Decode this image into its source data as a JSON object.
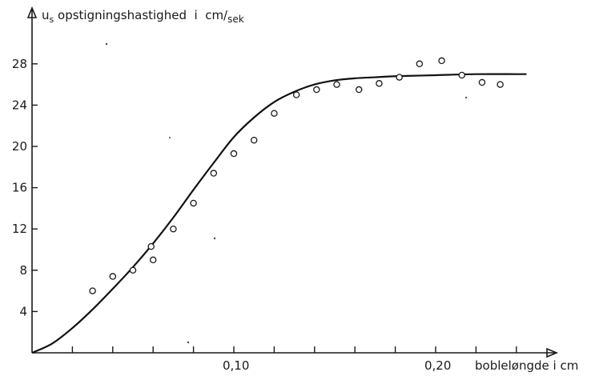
{
  "chart_data": {
    "type": "scatter",
    "ylabel": "u",
    "ylabel_sub": "s",
    "ylabel_rest": " opstigningshastighed  i  cm/",
    "ylabel_unit_sub": "sek",
    "xlabel": "bobleløngde i cm",
    "xlim": [
      0,
      0.25
    ],
    "ylim": [
      0,
      30
    ],
    "x_ticks": [
      0.02,
      0.04,
      0.06,
      0.08,
      0.1,
      0.12,
      0.14,
      0.16,
      0.18,
      0.2,
      0.22,
      0.24
    ],
    "x_tick_labels": [
      {
        "value": 0.1,
        "label": "0,10"
      },
      {
        "value": 0.2,
        "label": "0,20"
      }
    ],
    "y_ticks": [
      4,
      8,
      12,
      16,
      20,
      24,
      28
    ],
    "y_tick_labels": [
      "4",
      "8",
      "12",
      "16",
      "20",
      "24",
      "28"
    ],
    "grid": false,
    "legend": "none",
    "points": [
      {
        "x": 0.03,
        "y": 6.0
      },
      {
        "x": 0.04,
        "y": 7.4
      },
      {
        "x": 0.05,
        "y": 8.0
      },
      {
        "x": 0.059,
        "y": 10.3
      },
      {
        "x": 0.06,
        "y": 9.0
      },
      {
        "x": 0.07,
        "y": 12.0
      },
      {
        "x": 0.08,
        "y": 14.5
      },
      {
        "x": 0.09,
        "y": 17.4
      },
      {
        "x": 0.1,
        "y": 19.3
      },
      {
        "x": 0.11,
        "y": 20.6
      },
      {
        "x": 0.12,
        "y": 23.2
      },
      {
        "x": 0.131,
        "y": 25.0
      },
      {
        "x": 0.141,
        "y": 25.5
      },
      {
        "x": 0.151,
        "y": 26.0
      },
      {
        "x": 0.162,
        "y": 25.5
      },
      {
        "x": 0.172,
        "y": 26.1
      },
      {
        "x": 0.182,
        "y": 26.7
      },
      {
        "x": 0.192,
        "y": 28.0
      },
      {
        "x": 0.203,
        "y": 28.3
      },
      {
        "x": 0.213,
        "y": 26.9
      },
      {
        "x": 0.223,
        "y": 26.2
      },
      {
        "x": 0.232,
        "y": 26.0
      }
    ],
    "curve": [
      {
        "x": 0.0,
        "y": 0.0
      },
      {
        "x": 0.01,
        "y": 0.9
      },
      {
        "x": 0.02,
        "y": 2.4
      },
      {
        "x": 0.03,
        "y": 4.2
      },
      {
        "x": 0.04,
        "y": 6.2
      },
      {
        "x": 0.05,
        "y": 8.3
      },
      {
        "x": 0.06,
        "y": 10.6
      },
      {
        "x": 0.07,
        "y": 13.1
      },
      {
        "x": 0.08,
        "y": 15.8
      },
      {
        "x": 0.09,
        "y": 18.4
      },
      {
        "x": 0.1,
        "y": 20.9
      },
      {
        "x": 0.11,
        "y": 22.8
      },
      {
        "x": 0.12,
        "y": 24.3
      },
      {
        "x": 0.13,
        "y": 25.3
      },
      {
        "x": 0.14,
        "y": 26.0
      },
      {
        "x": 0.15,
        "y": 26.4
      },
      {
        "x": 0.16,
        "y": 26.6
      },
      {
        "x": 0.17,
        "y": 26.7
      },
      {
        "x": 0.18,
        "y": 26.8
      },
      {
        "x": 0.2,
        "y": 26.9
      },
      {
        "x": 0.22,
        "y": 27.0
      },
      {
        "x": 0.245,
        "y": 27.0
      }
    ]
  }
}
